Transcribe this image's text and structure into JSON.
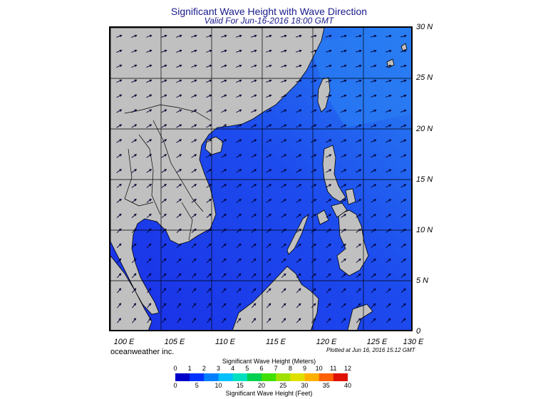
{
  "header": {
    "title": "Significant Wave Height with Wave Direction",
    "subtitle": "Valid For Jun-16-2016 18:00 GMT"
  },
  "map": {
    "lat_labels": [
      "30 N",
      "25 N",
      "20 N",
      "15 N",
      "10 N",
      "5 N",
      "0"
    ],
    "lon_labels": [
      "100 E",
      "105 E",
      "110 E",
      "115 E",
      "120 E",
      "125 E",
      "130 E"
    ],
    "colors": {
      "land": "#c0c0c0",
      "sea_low": "#1a2fe6",
      "sea_mid": "#1d5ef0",
      "sea_high": "#2a84f2",
      "arrow": "#000033"
    }
  },
  "footer": {
    "brand": "oceanweather inc.",
    "plotted": "Plotted at Jun 16, 2016 15:12 GMT"
  },
  "legend": {
    "meters_title": "Significant Wave Height (Meters)",
    "feet_title": "Significant Wave Height (Feet)",
    "meter_ticks": [
      "0",
      "1",
      "2",
      "3",
      "4",
      "5",
      "6",
      "7",
      "8",
      "9",
      "10",
      "11",
      "12"
    ],
    "feet_ticks": [
      "0",
      "5",
      "10",
      "15",
      "20",
      "25",
      "30",
      "35",
      "40"
    ],
    "colors": [
      "#0000c8",
      "#0033ff",
      "#0080ff",
      "#00c0ff",
      "#00e0c0",
      "#00d050",
      "#40e000",
      "#a0e000",
      "#e0e000",
      "#ffb000",
      "#ff6000",
      "#e01000"
    ]
  }
}
